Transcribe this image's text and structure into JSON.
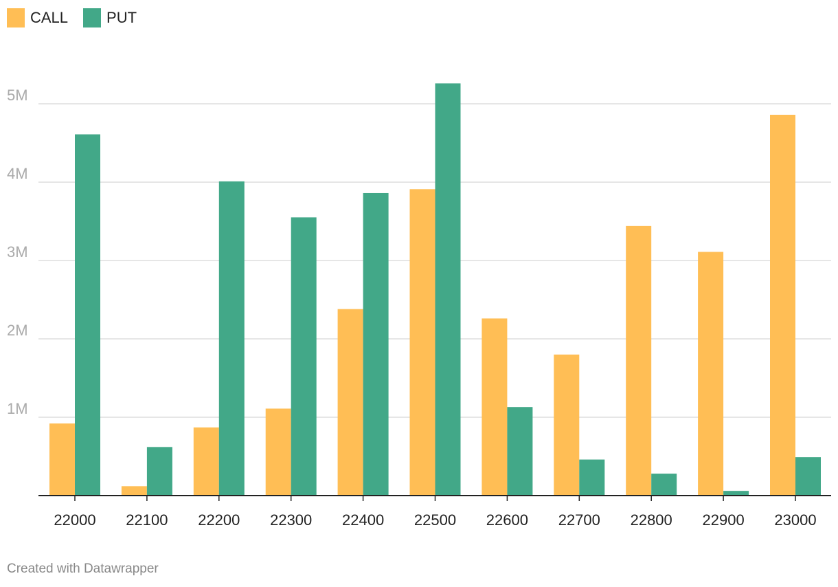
{
  "colors": {
    "call": "#FFBE55",
    "put": "#42A888",
    "grid": "#DDDDDD",
    "axis": "#222222",
    "ytick_text": "#AAAAAA",
    "xtick_text": "#222222"
  },
  "footer": "Created with Datawrapper",
  "chart_data": {
    "type": "bar",
    "categories": [
      "22000",
      "22100",
      "22200",
      "22300",
      "22400",
      "22500",
      "22600",
      "22700",
      "22800",
      "22900",
      "23000"
    ],
    "series": [
      {
        "name": "CALL",
        "values": [
          920000,
          120000,
          870000,
          1110000,
          2380000,
          3910000,
          2260000,
          1800000,
          3440000,
          3110000,
          4860000
        ]
      },
      {
        "name": "PUT",
        "values": [
          4610000,
          620000,
          4010000,
          3550000,
          3860000,
          5260000,
          1130000,
          460000,
          280000,
          60000,
          490000
        ]
      }
    ],
    "yticks": [
      {
        "value": 1000000,
        "label": "1M"
      },
      {
        "value": 2000000,
        "label": "2M"
      },
      {
        "value": 3000000,
        "label": "3M"
      },
      {
        "value": 4000000,
        "label": "4M"
      },
      {
        "value": 5000000,
        "label": "5M"
      }
    ],
    "ylim": [
      0,
      5500000
    ],
    "grid": true,
    "legend_position": "top-left",
    "title": "",
    "xlabel": "",
    "ylabel": ""
  }
}
